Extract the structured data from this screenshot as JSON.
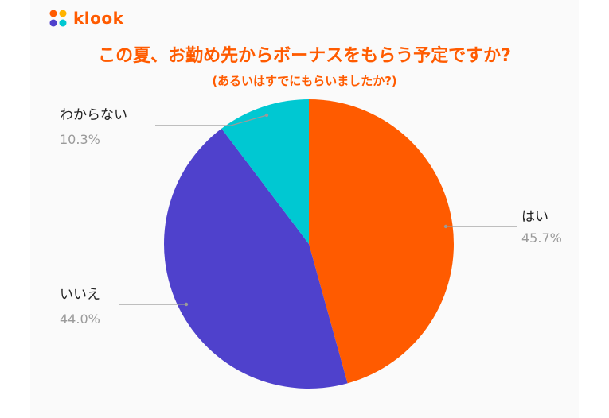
{
  "brand": {
    "name": "klook",
    "color": "#ff5b00"
  },
  "title": "この夏、お勤め先からボーナスをもらう予定ですか?",
  "subtitle": "(あるいはすでにもらいましたか?)",
  "chart_data": {
    "type": "pie",
    "title": "この夏、お勤め先からボーナスをもらう予定ですか?",
    "subtitle": "(あるいはすでにもらいましたか?)",
    "categories": [
      "はい",
      "いいえ",
      "わからない"
    ],
    "values": [
      45.7,
      44.0,
      10.3
    ],
    "value_labels": [
      "45.7%",
      "44.0%",
      "10.3%"
    ],
    "colors": [
      "#ff5b00",
      "#4f41cc",
      "#00c8d2"
    ],
    "start": "12 o'clock",
    "direction": "clockwise",
    "legend": "none"
  }
}
